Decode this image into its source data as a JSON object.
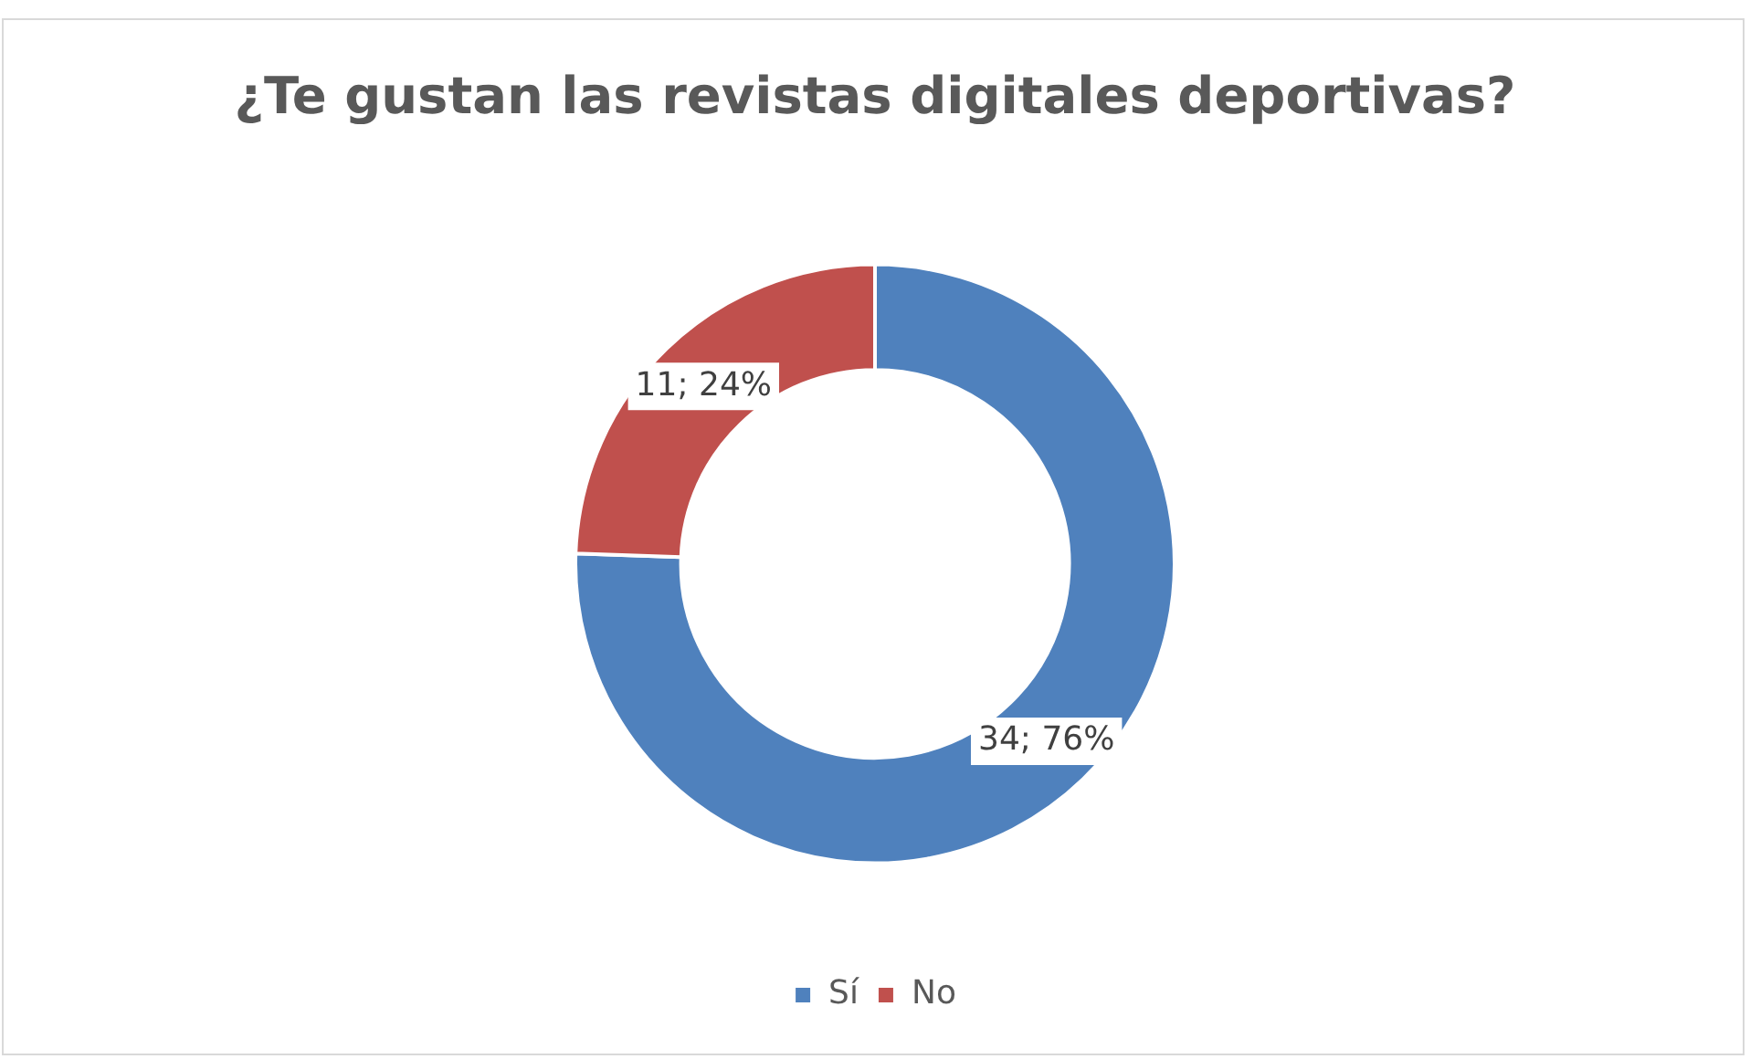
{
  "chart_data": {
    "type": "donut",
    "title": "¿Te gustan las revistas digitales deportivas?",
    "categories": [
      "Sí",
      "No"
    ],
    "values": [
      34,
      11
    ],
    "colors": [
      "#4f81bd",
      "#c0504d"
    ],
    "value_labels": [
      "34; 76%",
      "11; 24%"
    ],
    "legend": "bottom"
  }
}
